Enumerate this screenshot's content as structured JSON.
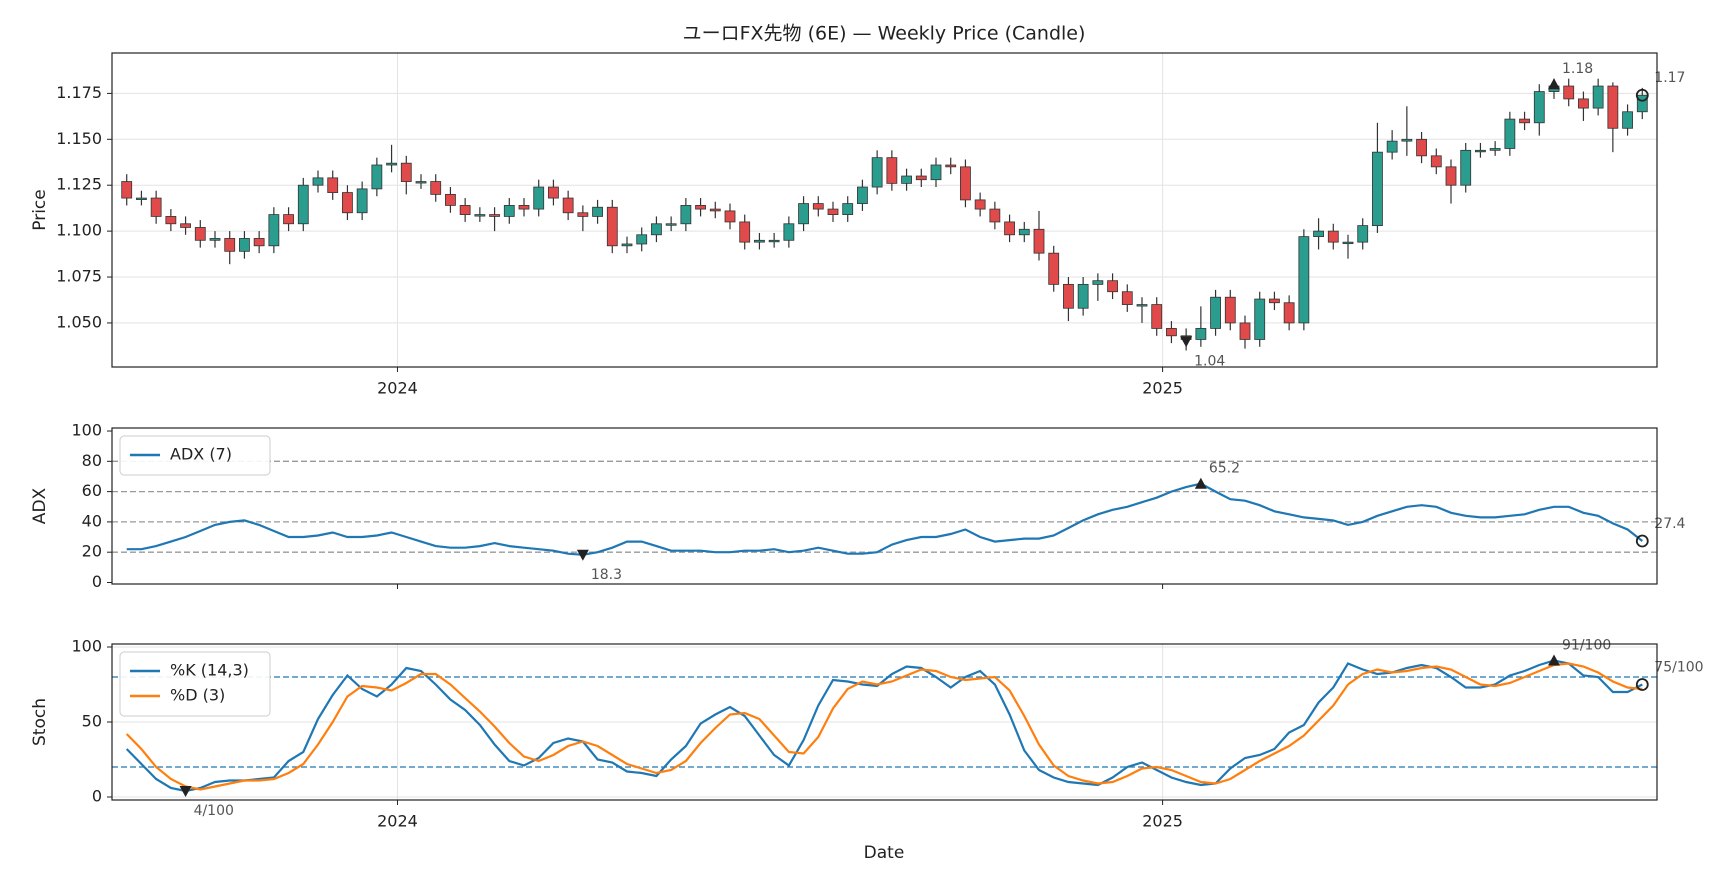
{
  "chart_data": [
    {
      "type": "candlestick",
      "title": "ユーロFX先物 (6E) — Weekly Price (Candle)",
      "ylabel": "Price",
      "xlim": [
        -1,
        104
      ],
      "xticks": [
        {
          "value": 18.4,
          "label": "2024"
        },
        {
          "value": 70.4,
          "label": "2025"
        }
      ],
      "ylim": [
        1.026,
        1.197
      ],
      "yticks": [
        {
          "value": 1.05,
          "label": "1.050"
        },
        1.075,
        {
          "value": 1.1,
          "label": "1.100"
        },
        1.125,
        {
          "value": 1.15,
          "label": "1.150"
        },
        1.175
      ],
      "grid": true,
      "up_color": "#2a9d8f",
      "down_color": "#e04a4a",
      "edge_color": "#333333",
      "open": [
        1.127,
        1.118,
        1.118,
        1.108,
        1.104,
        1.102,
        1.095,
        1.096,
        1.089,
        1.096,
        1.092,
        1.109,
        1.104,
        1.125,
        1.129,
        1.121,
        1.11,
        1.123,
        1.136,
        1.137,
        1.127,
        1.127,
        1.12,
        1.114,
        1.109,
        1.109,
        1.108,
        1.114,
        1.112,
        1.124,
        1.118,
        1.11,
        1.108,
        1.113,
        1.092,
        1.093,
        1.098,
        1.104,
        1.104,
        1.114,
        1.112,
        1.111,
        1.105,
        1.094,
        1.095,
        1.095,
        1.104,
        1.115,
        1.112,
        1.109,
        1.115,
        1.124,
        1.14,
        1.126,
        1.13,
        1.128,
        1.136,
        1.135,
        1.117,
        1.112,
        1.105,
        1.098,
        1.101,
        1.088,
        1.071,
        1.058,
        1.071,
        1.073,
        1.067,
        1.06,
        1.06,
        1.047,
        1.043,
        1.041,
        1.047,
        1.064,
        1.05,
        1.041,
        1.063,
        1.061,
        1.05,
        1.097,
        1.1,
        1.094,
        1.094,
        1.103,
        1.143,
        1.149,
        1.15,
        1.141,
        1.135,
        1.125,
        1.144,
        1.144,
        1.145,
        1.161,
        1.159,
        1.176,
        1.179,
        1.172,
        1.167,
        1.179,
        1.156,
        1.165
      ],
      "high": [
        1.131,
        1.122,
        1.122,
        1.112,
        1.108,
        1.106,
        1.1,
        1.1,
        1.1,
        1.1,
        1.113,
        1.113,
        1.129,
        1.133,
        1.133,
        1.125,
        1.127,
        1.14,
        1.147,
        1.141,
        1.131,
        1.131,
        1.124,
        1.118,
        1.113,
        1.113,
        1.118,
        1.118,
        1.128,
        1.128,
        1.122,
        1.114,
        1.117,
        1.117,
        1.097,
        1.102,
        1.108,
        1.108,
        1.118,
        1.118,
        1.116,
        1.115,
        1.109,
        1.099,
        1.099,
        1.108,
        1.119,
        1.119,
        1.116,
        1.119,
        1.128,
        1.144,
        1.144,
        1.134,
        1.134,
        1.14,
        1.14,
        1.139,
        1.121,
        1.116,
        1.109,
        1.105,
        1.111,
        1.092,
        1.075,
        1.075,
        1.077,
        1.077,
        1.071,
        1.064,
        1.064,
        1.051,
        1.047,
        1.059,
        1.068,
        1.068,
        1.054,
        1.067,
        1.067,
        1.065,
        1.101,
        1.107,
        1.104,
        1.098,
        1.107,
        1.159,
        1.155,
        1.168,
        1.154,
        1.145,
        1.139,
        1.148,
        1.148,
        1.149,
        1.165,
        1.165,
        1.18,
        1.183,
        1.183,
        1.176,
        1.183,
        1.181,
        1.169,
        1.178
      ],
      "low": [
        1.114,
        1.114,
        1.104,
        1.1,
        1.098,
        1.091,
        1.091,
        1.082,
        1.085,
        1.088,
        1.088,
        1.1,
        1.1,
        1.121,
        1.117,
        1.106,
        1.106,
        1.119,
        1.132,
        1.12,
        1.123,
        1.116,
        1.11,
        1.105,
        1.105,
        1.1,
        1.104,
        1.108,
        1.108,
        1.114,
        1.106,
        1.1,
        1.104,
        1.088,
        1.088,
        1.089,
        1.094,
        1.1,
        1.1,
        1.108,
        1.107,
        1.101,
        1.09,
        1.09,
        1.091,
        1.091,
        1.1,
        1.108,
        1.105,
        1.105,
        1.111,
        1.12,
        1.122,
        1.122,
        1.124,
        1.124,
        1.131,
        1.113,
        1.108,
        1.101,
        1.094,
        1.094,
        1.084,
        1.067,
        1.051,
        1.054,
        1.062,
        1.063,
        1.056,
        1.05,
        1.043,
        1.039,
        1.035,
        1.037,
        1.043,
        1.046,
        1.036,
        1.037,
        1.057,
        1.046,
        1.046,
        1.09,
        1.09,
        1.085,
        1.09,
        1.099,
        1.139,
        1.141,
        1.137,
        1.131,
        1.115,
        1.121,
        1.14,
        1.141,
        1.141,
        1.155,
        1.152,
        1.172,
        1.168,
        1.16,
        1.163,
        1.143,
        1.152,
        1.161
      ],
      "close": [
        1.118,
        1.118,
        1.108,
        1.104,
        1.102,
        1.095,
        1.096,
        1.089,
        1.096,
        1.092,
        1.109,
        1.104,
        1.125,
        1.129,
        1.121,
        1.11,
        1.123,
        1.136,
        1.137,
        1.127,
        1.127,
        1.12,
        1.114,
        1.109,
        1.109,
        1.108,
        1.114,
        1.112,
        1.124,
        1.118,
        1.11,
        1.108,
        1.113,
        1.092,
        1.093,
        1.098,
        1.104,
        1.104,
        1.114,
        1.112,
        1.111,
        1.105,
        1.094,
        1.095,
        1.095,
        1.104,
        1.115,
        1.112,
        1.109,
        1.115,
        1.124,
        1.14,
        1.126,
        1.13,
        1.128,
        1.136,
        1.135,
        1.117,
        1.112,
        1.105,
        1.098,
        1.101,
        1.088,
        1.071,
        1.058,
        1.071,
        1.073,
        1.067,
        1.06,
        1.06,
        1.047,
        1.043,
        1.041,
        1.047,
        1.064,
        1.05,
        1.041,
        1.063,
        1.061,
        1.05,
        1.097,
        1.1,
        1.094,
        1.094,
        1.103,
        1.143,
        1.149,
        1.15,
        1.141,
        1.135,
        1.125,
        1.144,
        1.144,
        1.145,
        1.161,
        1.159,
        1.176,
        1.179,
        1.172,
        1.167,
        1.179,
        1.156,
        1.165,
        1.174
      ],
      "annotations": [
        {
          "x": 97,
          "value": 1.18,
          "marker": "up"
        },
        {
          "x": 72,
          "value": 1.04,
          "marker": "down"
        },
        {
          "x": 103,
          "value": 1.174,
          "label": "1.17",
          "marker": "end"
        }
      ]
    },
    {
      "type": "line",
      "ylabel": "ADX",
      "xlim": [
        -1,
        104
      ],
      "xticks": [
        18.4,
        70.4
      ],
      "ylim": [
        -1,
        102
      ],
      "yticks": [
        0,
        20,
        40,
        60,
        80,
        100
      ],
      "grid": false,
      "hlines": [
        20,
        40,
        60,
        80
      ],
      "hline_color": "#999999",
      "legend": "upper left",
      "series": [
        {
          "name": "ADX (7)",
          "color": "#1f77b4",
          "values": [
            22,
            22,
            24,
            27,
            30,
            34,
            38,
            40,
            41,
            38,
            34,
            30,
            30,
            31,
            33,
            30,
            30,
            31,
            33,
            30,
            27,
            24,
            23,
            23,
            24,
            26,
            24,
            23,
            22,
            21,
            19,
            18.3,
            20,
            23,
            27,
            27,
            24,
            21,
            21,
            21,
            20,
            20,
            21,
            21,
            22,
            20,
            21,
            23,
            21,
            19,
            19,
            20,
            25,
            28,
            30,
            30,
            32,
            35,
            30,
            27,
            28,
            29,
            29,
            31,
            36,
            41,
            45,
            48,
            50,
            53,
            56,
            60,
            63,
            65.2,
            60,
            55,
            54,
            51,
            47,
            45,
            43,
            42,
            41,
            38,
            40,
            44,
            47,
            50,
            51,
            50,
            46,
            44,
            43,
            43,
            44,
            45,
            48,
            50,
            50,
            46,
            44,
            39,
            35,
            27.4
          ]
        }
      ],
      "annotations": [
        {
          "x": 31,
          "value": 18.3,
          "marker": "down"
        },
        {
          "x": 73,
          "value": 65.2,
          "marker": "up"
        },
        {
          "x": 103,
          "value": 27.4,
          "marker": "end"
        }
      ]
    },
    {
      "type": "line",
      "ylabel": "Stoch",
      "xlabel": "Date",
      "xlim": [
        -1,
        104
      ],
      "xticks": [
        {
          "value": 18.4,
          "label": "2024"
        },
        {
          "value": 70.4,
          "label": "2025"
        }
      ],
      "ylim": [
        -2,
        102
      ],
      "yticks": [
        0,
        50,
        100
      ],
      "grid": true,
      "hlines": [
        20,
        80
      ],
      "hline_color": "#1f77b4",
      "legend": "upper left",
      "series": [
        {
          "name": "%K (14,3)",
          "color": "#1f77b4",
          "values": [
            32,
            22,
            12,
            6,
            4,
            6,
            10,
            11,
            11,
            12,
            13,
            24,
            30,
            52,
            68,
            81,
            72,
            67,
            75,
            86,
            84,
            75,
            65,
            58,
            48,
            35,
            24,
            21,
            26,
            36,
            39,
            37,
            25,
            23,
            17,
            16,
            14,
            25,
            34,
            49,
            55,
            60,
            54,
            41,
            28,
            21,
            38,
            61,
            78,
            77,
            75,
            74,
            82,
            87,
            86,
            80,
            73,
            80,
            84,
            75,
            55,
            31,
            18,
            13,
            10,
            9,
            8,
            13,
            20,
            23,
            18,
            13,
            10,
            8,
            9,
            19,
            26,
            28,
            32,
            43,
            48,
            63,
            73,
            89,
            85,
            82,
            83,
            86,
            88,
            86,
            80,
            73,
            73,
            75,
            81,
            84,
            88,
            91,
            89,
            81,
            80,
            70,
            70,
            75
          ]
        },
        {
          "name": "%D (3)",
          "color": "#ff7f0e",
          "values": [
            42,
            32,
            20,
            12,
            7,
            5,
            7,
            9,
            11,
            11,
            12,
            16,
            22,
            35,
            50,
            67,
            74,
            73,
            71,
            76,
            82,
            82,
            75,
            66,
            57,
            47,
            36,
            27,
            24,
            28,
            34,
            37,
            34,
            28,
            22,
            19,
            16,
            18,
            24,
            36,
            46,
            55,
            56,
            52,
            41,
            30,
            29,
            40,
            59,
            72,
            77,
            75,
            77,
            81,
            85,
            84,
            80,
            78,
            79,
            80,
            71,
            54,
            35,
            21,
            14,
            11,
            9,
            10,
            14,
            19,
            20,
            18,
            14,
            10,
            9,
            12,
            18,
            24,
            29,
            34,
            41,
            51,
            61,
            75,
            82,
            85,
            83,
            84,
            86,
            87,
            85,
            80,
            75,
            74,
            76,
            80,
            84,
            88,
            89,
            87,
            83,
            77,
            73,
            72
          ]
        }
      ],
      "annotations": [
        {
          "x": 4,
          "value": 4,
          "label": "4/100",
          "marker": "down"
        },
        {
          "x": 97,
          "value": 91,
          "label": "91/100",
          "marker": "up"
        },
        {
          "x": 103,
          "value": 75,
          "label": "75/100",
          "marker": "end"
        }
      ]
    }
  ]
}
